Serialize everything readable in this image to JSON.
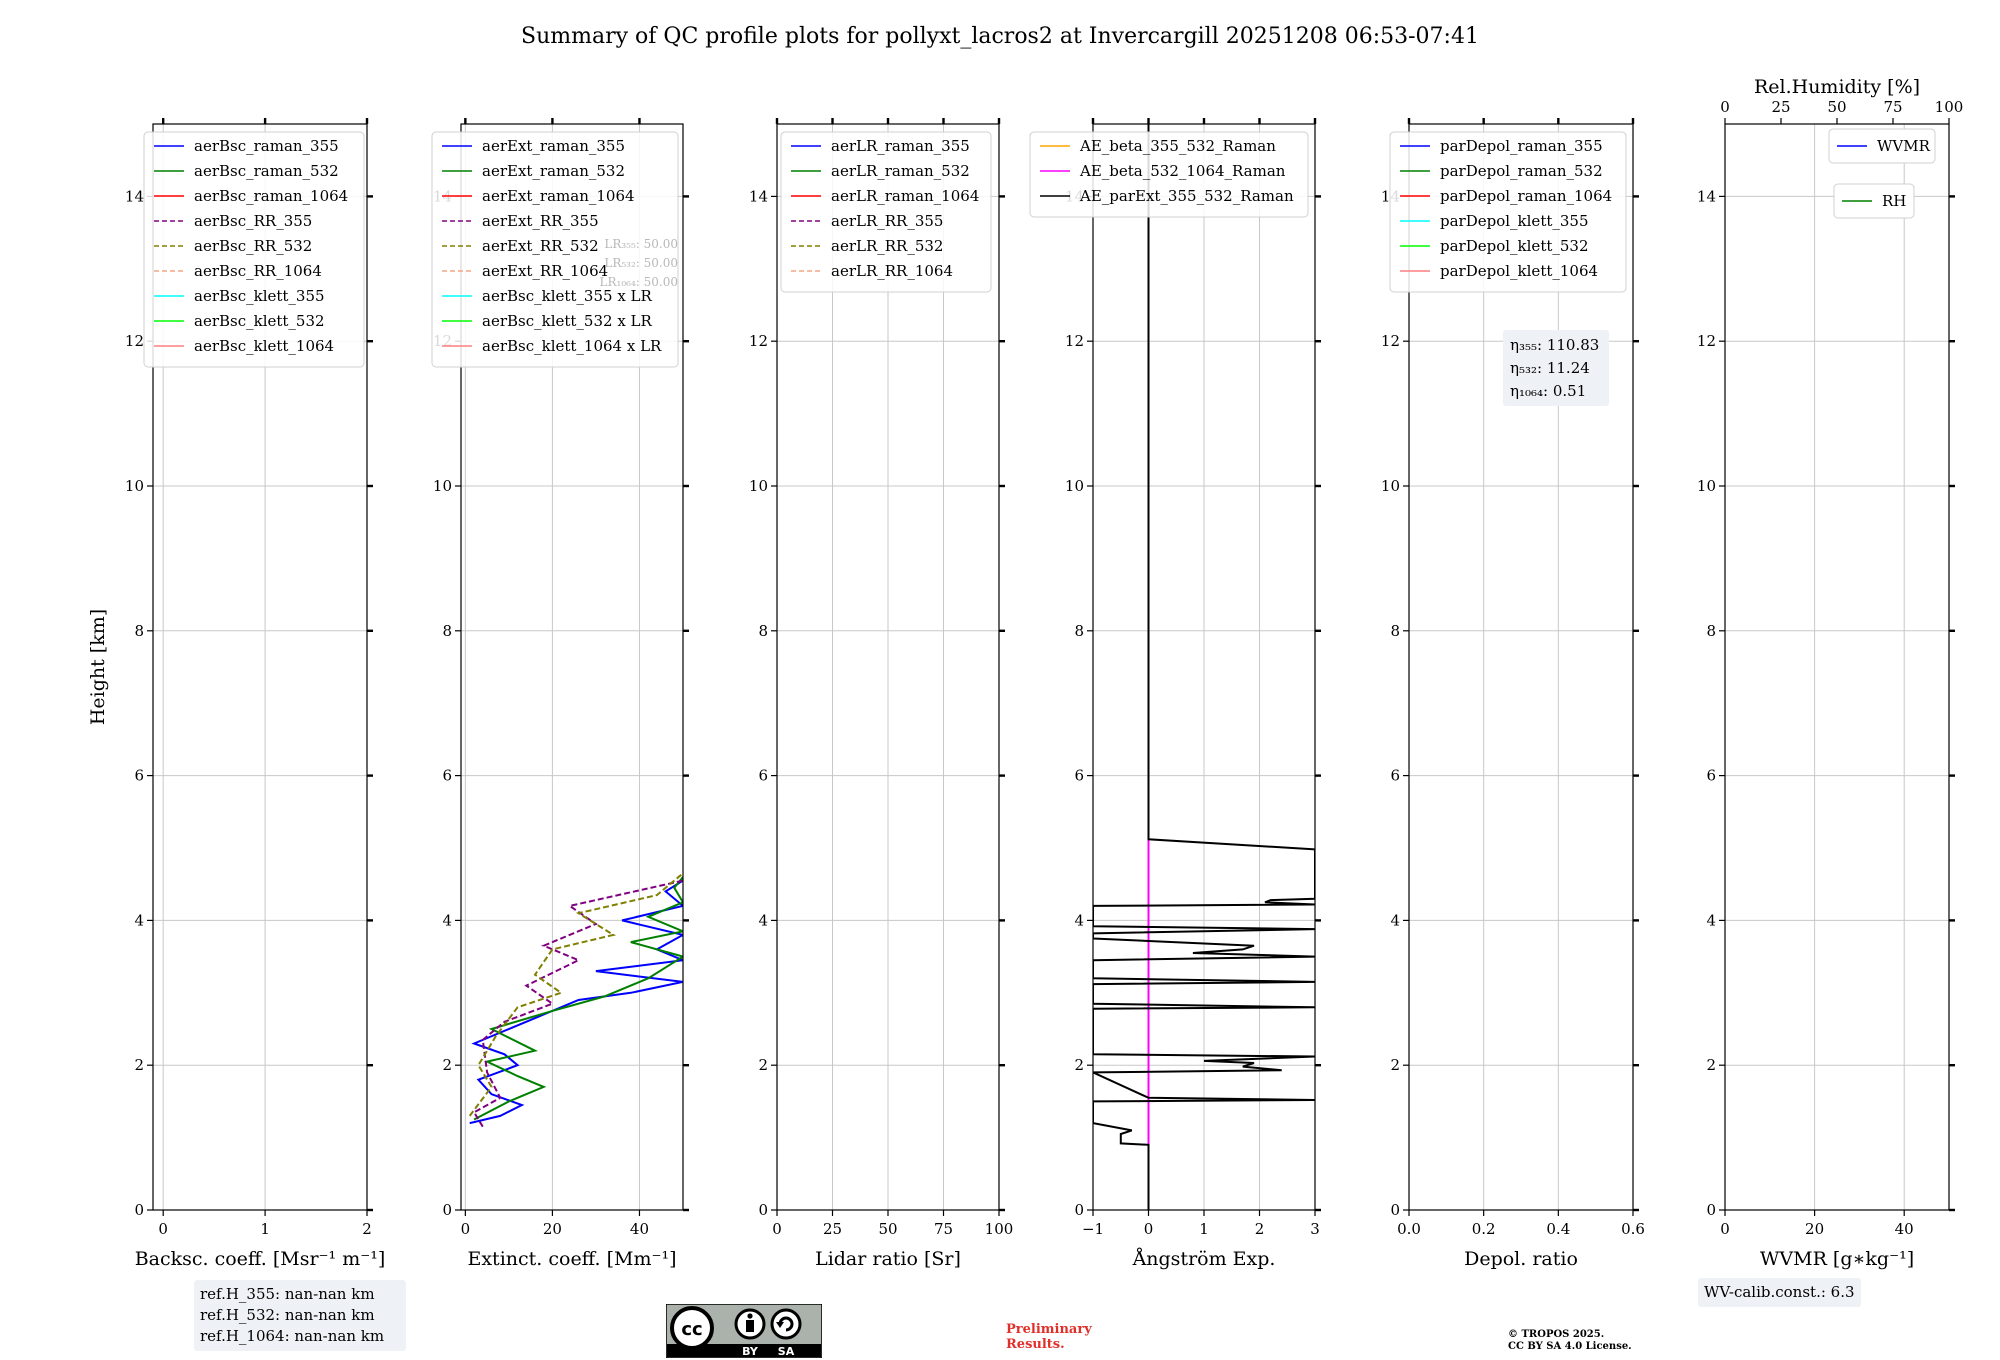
{
  "suptitle": "Summary of QC profile plots for pollyxt_lacros2 at Invercargill 20251208 06:53-07:41",
  "chart_data": [
    {
      "type": "line",
      "panel": "backscatter",
      "xlabel": "Backsc. coeff. [Msr⁻¹ m⁻¹]",
      "ylabel": "Height [km]",
      "xlim": [
        -0.1,
        2
      ],
      "ylim": [
        0,
        15
      ],
      "xticks": [
        0,
        1,
        2
      ],
      "yticks": [
        0,
        2,
        4,
        6,
        8,
        10,
        12,
        14
      ],
      "legend": [
        {
          "name": "aerBsc_raman_355",
          "color": "#0000ff",
          "dash": false
        },
        {
          "name": "aerBsc_raman_532",
          "color": "#008000",
          "dash": false
        },
        {
          "name": "aerBsc_raman_1064",
          "color": "#ff0000",
          "dash": false
        },
        {
          "name": "aerBsc_RR_355",
          "color": "#800080",
          "dash": true
        },
        {
          "name": "aerBsc_RR_532",
          "color": "#808000",
          "dash": true
        },
        {
          "name": "aerBsc_RR_1064",
          "color": "#f4a582",
          "dash": true
        },
        {
          "name": "aerBsc_klett_355",
          "color": "#00ffff",
          "dash": false
        },
        {
          "name": "aerBsc_klett_532",
          "color": "#00ff00",
          "dash": false
        },
        {
          "name": "aerBsc_klett_1064",
          "color": "#ff7f7f",
          "dash": false
        }
      ],
      "series": []
    },
    {
      "type": "line",
      "panel": "extinction",
      "xlabel": "Extinct. coeff. [Mm⁻¹]",
      "xlim": [
        -1,
        50
      ],
      "ylim": [
        0,
        15
      ],
      "xticks": [
        0,
        20,
        40
      ],
      "yticks": [
        0,
        2,
        4,
        6,
        8,
        10,
        12,
        14
      ],
      "legend": [
        {
          "name": "aerExt_raman_355",
          "color": "#0000ff",
          "dash": false
        },
        {
          "name": "aerExt_raman_532",
          "color": "#008000",
          "dash": false
        },
        {
          "name": "aerExt_raman_1064",
          "color": "#ff0000",
          "dash": false
        },
        {
          "name": "aerExt_RR_355",
          "color": "#800080",
          "dash": true
        },
        {
          "name": "aerExt_RR_532",
          "color": "#808000",
          "dash": true
        },
        {
          "name": "aerExt_RR_1064",
          "color": "#f4a582",
          "dash": true
        },
        {
          "name": "aerBsc_klett_355 x LR",
          "color": "#00ffff",
          "dash": false
        },
        {
          "name": "aerBsc_klett_532 x LR",
          "color": "#00ff00",
          "dash": false
        },
        {
          "name": "aerBsc_klett_1064 x LR",
          "color": "#ff7f7f",
          "dash": false
        }
      ],
      "lr_labels": [
        "LR₃₅₅: 50.00",
        "LR₅₃₂: 50.00",
        "LR₁₀₆₄: 50.00"
      ],
      "series": [
        {
          "name": "aerExt_raman_355",
          "color": "#0000ff",
          "points": [
            [
              1,
              1.2
            ],
            [
              8,
              1.3
            ],
            [
              13,
              1.45
            ],
            [
              6,
              1.6
            ],
            [
              3,
              1.8
            ],
            [
              12,
              2.0
            ],
            [
              9,
              2.15
            ],
            [
              2,
              2.3
            ],
            [
              18,
              2.7
            ],
            [
              26,
              2.9
            ],
            [
              38,
              3.0
            ],
            [
              50,
              3.15
            ],
            [
              30,
              3.3
            ],
            [
              50,
              3.45
            ],
            [
              44,
              3.6
            ],
            [
              50,
              3.8
            ],
            [
              36,
              4.0
            ],
            [
              50,
              4.2
            ],
            [
              46,
              4.4
            ],
            [
              50,
              4.55
            ]
          ]
        },
        {
          "name": "aerExt_raman_532",
          "color": "#008000",
          "points": [
            [
              2,
              1.25
            ],
            [
              10,
              1.5
            ],
            [
              18,
              1.7
            ],
            [
              12,
              1.85
            ],
            [
              5,
              2.05
            ],
            [
              16,
              2.2
            ],
            [
              6,
              2.5
            ],
            [
              20,
              2.75
            ],
            [
              32,
              2.95
            ],
            [
              42,
              3.2
            ],
            [
              50,
              3.5
            ],
            [
              38,
              3.7
            ],
            [
              50,
              3.85
            ],
            [
              42,
              4.05
            ],
            [
              50,
              4.25
            ],
            [
              48,
              4.45
            ],
            [
              50,
              4.6
            ]
          ]
        },
        {
          "name": "aerExt_RR_355",
          "color": "#800080",
          "points": [
            [
              4,
              1.15
            ],
            [
              2,
              1.35
            ],
            [
              8,
              1.55
            ],
            [
              5,
              1.9
            ],
            [
              4,
              2.35
            ],
            [
              9,
              2.6
            ],
            [
              20,
              2.85
            ],
            [
              14,
              3.1
            ],
            [
              26,
              3.45
            ],
            [
              18,
              3.65
            ],
            [
              30,
              3.95
            ],
            [
              24,
              4.2
            ],
            [
              50,
              4.55
            ]
          ]
        },
        {
          "name": "aerExt_RR_532",
          "color": "#808000",
          "points": [
            [
              1,
              1.3
            ],
            [
              6,
              1.7
            ],
            [
              3,
              2.0
            ],
            [
              7,
              2.4
            ],
            [
              12,
              2.8
            ],
            [
              22,
              3.0
            ],
            [
              16,
              3.25
            ],
            [
              20,
              3.6
            ],
            [
              34,
              3.8
            ],
            [
              26,
              4.1
            ],
            [
              44,
              4.35
            ],
            [
              50,
              4.65
            ]
          ]
        }
      ]
    },
    {
      "type": "line",
      "panel": "lidar_ratio",
      "xlabel": "Lidar ratio [Sr]",
      "xlim": [
        0,
        100
      ],
      "ylim": [
        0,
        15
      ],
      "xticks": [
        0,
        25,
        50,
        75,
        100
      ],
      "yticks": [
        0,
        2,
        4,
        6,
        8,
        10,
        12,
        14
      ],
      "legend": [
        {
          "name": "aerLR_raman_355",
          "color": "#0000ff",
          "dash": false
        },
        {
          "name": "aerLR_raman_532",
          "color": "#008000",
          "dash": false
        },
        {
          "name": "aerLR_raman_1064",
          "color": "#ff0000",
          "dash": false
        },
        {
          "name": "aerLR_RR_355",
          "color": "#800080",
          "dash": true
        },
        {
          "name": "aerLR_RR_532",
          "color": "#808000",
          "dash": true
        },
        {
          "name": "aerLR_RR_1064",
          "color": "#f4a582",
          "dash": true
        }
      ],
      "series": []
    },
    {
      "type": "line",
      "panel": "angstrom",
      "xlabel": "Ångström Exp.",
      "xlim": [
        -1,
        3
      ],
      "ylim": [
        0,
        15
      ],
      "xticks": [
        -1,
        0,
        1,
        2,
        3
      ],
      "xtick_labels": [
        "−1",
        "0",
        "1",
        "2",
        "3"
      ],
      "yticks": [
        0,
        2,
        4,
        6,
        8,
        10,
        12,
        14
      ],
      "legend": [
        {
          "name": "AE_beta_355_532_Raman",
          "color": "#ffa500",
          "dash": false
        },
        {
          "name": "AE_beta_532_1064_Raman",
          "color": "#ff00ff",
          "dash": false
        },
        {
          "name": "AE_parExt_355_532_Raman",
          "color": "#000000",
          "dash": false
        }
      ],
      "series": [
        {
          "name": "AE_beta_532_1064_Raman",
          "color": "#ff00ff",
          "points": [
            [
              0,
              0
            ],
            [
              0,
              5.12
            ]
          ]
        },
        {
          "name": "AE_parExt_355_532_Raman",
          "color": "#000000",
          "points": [
            [
              0,
              0
            ],
            [
              0,
              0.9
            ],
            [
              -0.5,
              0.92
            ],
            [
              -0.5,
              1.05
            ],
            [
              -0.3,
              1.1
            ],
            [
              -1,
              1.2
            ],
            [
              -1,
              1.5
            ],
            [
              3,
              1.52
            ],
            [
              0,
              1.55
            ],
            [
              -1,
              1.9
            ],
            [
              2.4,
              1.93
            ],
            [
              1.7,
              1.98
            ],
            [
              1.9,
              2.03
            ],
            [
              1,
              2.06
            ],
            [
              3,
              2.12
            ],
            [
              -1,
              2.15
            ],
            [
              -1,
              2.78
            ],
            [
              3,
              2.8
            ],
            [
              -1,
              2.85
            ],
            [
              -1,
              3.12
            ],
            [
              3,
              3.15
            ],
            [
              -1,
              3.2
            ],
            [
              -1,
              3.45
            ],
            [
              3,
              3.5
            ],
            [
              0.8,
              3.55
            ],
            [
              1.7,
              3.6
            ],
            [
              1.9,
              3.65
            ],
            [
              -1,
              3.75
            ],
            [
              -1,
              3.82
            ],
            [
              3,
              3.88
            ],
            [
              -1,
              3.92
            ],
            [
              -1,
              4.2
            ],
            [
              3,
              4.22
            ],
            [
              2.1,
              4.25
            ],
            [
              2.2,
              4.28
            ],
            [
              3,
              4.3
            ],
            [
              3,
              4.98
            ],
            [
              0,
              5.12
            ],
            [
              0,
              15
            ]
          ]
        }
      ]
    },
    {
      "type": "line",
      "panel": "depolarization",
      "xlabel": "Depol. ratio",
      "xlim": [
        0,
        0.6
      ],
      "ylim": [
        0,
        15
      ],
      "xticks": [
        0.0,
        0.2,
        0.4,
        0.6
      ],
      "xtick_labels": [
        "0.0",
        "0.2",
        "0.4",
        "0.6"
      ],
      "yticks": [
        0,
        2,
        4,
        6,
        8,
        10,
        12,
        14
      ],
      "legend": [
        {
          "name": "parDepol_raman_355",
          "color": "#0000ff",
          "dash": false
        },
        {
          "name": "parDepol_raman_532",
          "color": "#008000",
          "dash": false
        },
        {
          "name": "parDepol_raman_1064",
          "color": "#ff0000",
          "dash": false
        },
        {
          "name": "parDepol_klett_355",
          "color": "#00ffff",
          "dash": false
        },
        {
          "name": "parDepol_klett_532",
          "color": "#00ff00",
          "dash": false
        },
        {
          "name": "parDepol_klett_1064",
          "color": "#ff7f7f",
          "dash": false
        }
      ],
      "eta": [
        "η₃₅₅: 110.83",
        "η₅₃₂: 11.24",
        "η₁₀₆₄: 0.51"
      ],
      "series": []
    },
    {
      "type": "line",
      "panel": "water_vapor",
      "xlabel": "WVMR [g∗kg⁻¹]",
      "top_xlabel": "Rel.Humidity [%]",
      "xlim": [
        0,
        50
      ],
      "top_xlim": [
        0,
        100
      ],
      "ylim": [
        0,
        15
      ],
      "xticks": [
        0,
        20,
        40
      ],
      "top_xticks": [
        0,
        25,
        50,
        75,
        100
      ],
      "yticks": [
        0,
        2,
        4,
        6,
        8,
        10,
        12,
        14
      ],
      "legend": [
        {
          "name": "WVMR",
          "color": "#0000ff",
          "dash": false
        },
        {
          "name": "RH",
          "color": "#008000",
          "dash": false
        }
      ],
      "series": []
    }
  ],
  "annotations": {
    "ref_h": [
      "ref.H_355: nan-nan km",
      "ref.H_532: nan-nan km",
      "ref.H_1064: nan-nan km"
    ],
    "wv_calib": "WV-calib.const.: 6.3",
    "preliminary": [
      "Preliminary",
      "Results."
    ],
    "copyright": [
      "© TROPOS 2025.",
      "CC BY SA 4.0 License."
    ],
    "cc_badge": {
      "by": "BY",
      "sa": "SA"
    }
  }
}
